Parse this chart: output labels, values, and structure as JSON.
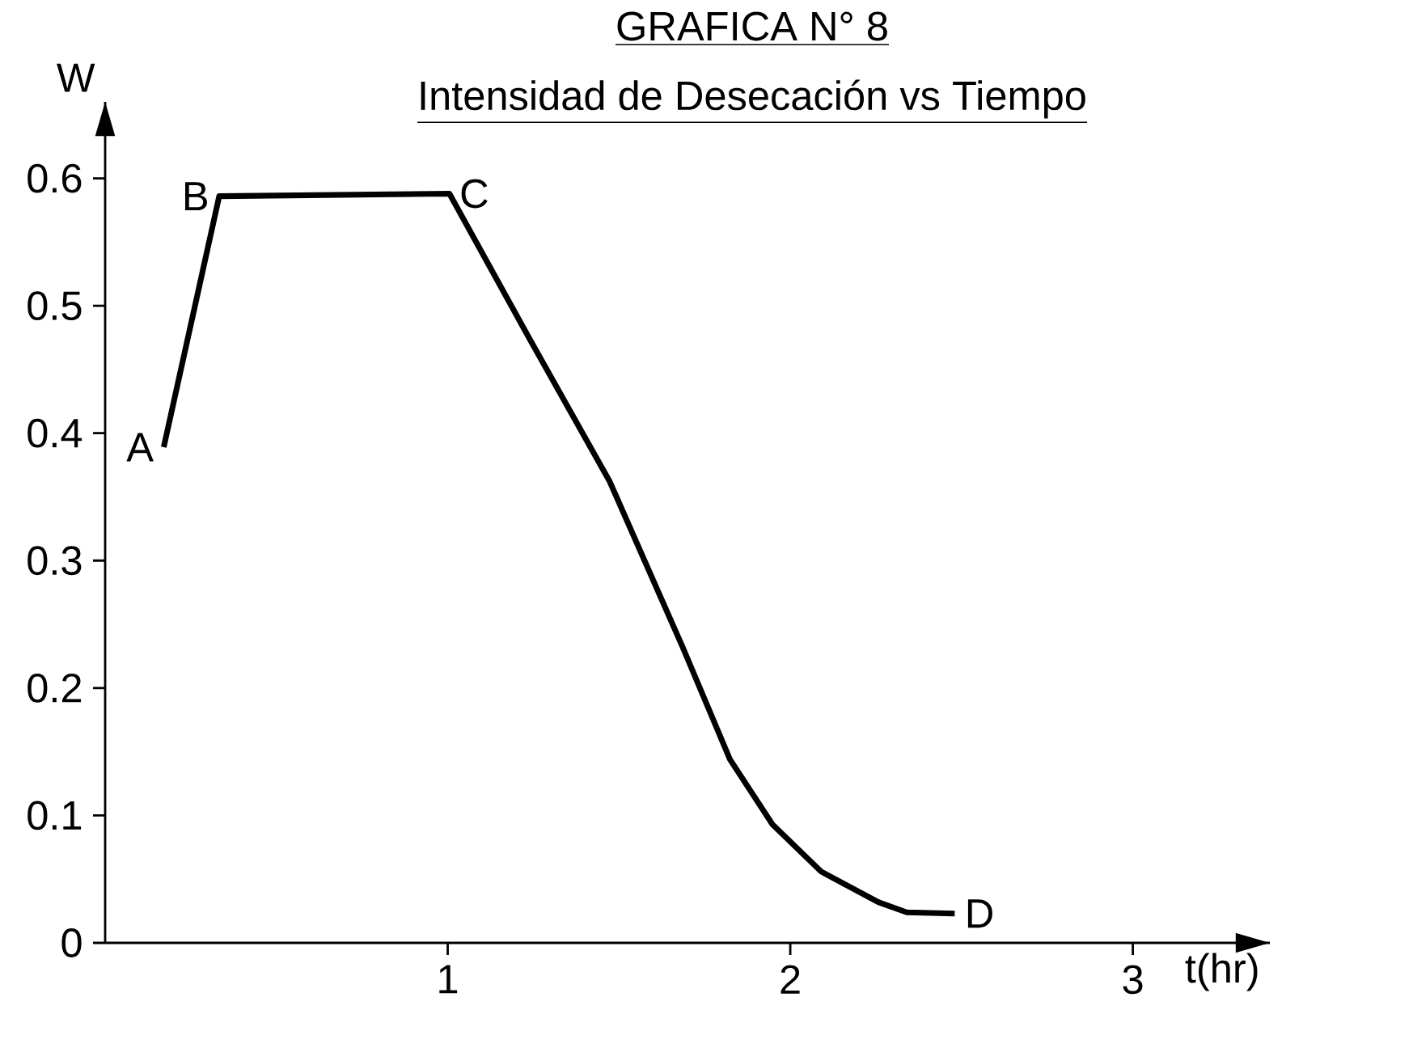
{
  "chart_data": {
    "type": "line",
    "title": "GRAFICA N° 8",
    "subtitle": "Intensidad de Desecación vs Tiempo",
    "xlabel": "t(hr)",
    "ylabel": "W",
    "x": [
      0.171,
      0.333,
      1.005,
      1.235,
      1.473,
      1.686,
      1.824,
      1.948,
      2.09,
      2.257,
      2.34,
      2.48
    ],
    "values": [
      0.389,
      0.586,
      0.588,
      0.476,
      0.362,
      0.232,
      0.144,
      0.093,
      0.056,
      0.032,
      0.024,
      0.023
    ],
    "color": "#000000",
    "marker": "none",
    "line_style": "solid",
    "grid": false,
    "xlim": [
      0,
      3.4
    ],
    "ylim": [
      0,
      0.66
    ],
    "xticks": [
      1,
      2,
      3
    ],
    "yticks": [
      0,
      0.1,
      0.2,
      0.3,
      0.4,
      0.5,
      0.6
    ],
    "annotations": [
      {
        "text": "A",
        "x": 0.171,
        "y": 0.389
      },
      {
        "text": "B",
        "x": 0.333,
        "y": 0.586
      },
      {
        "text": "C",
        "x": 1.005,
        "y": 0.588
      },
      {
        "text": "D",
        "x": 2.48,
        "y": 0.023
      }
    ]
  }
}
